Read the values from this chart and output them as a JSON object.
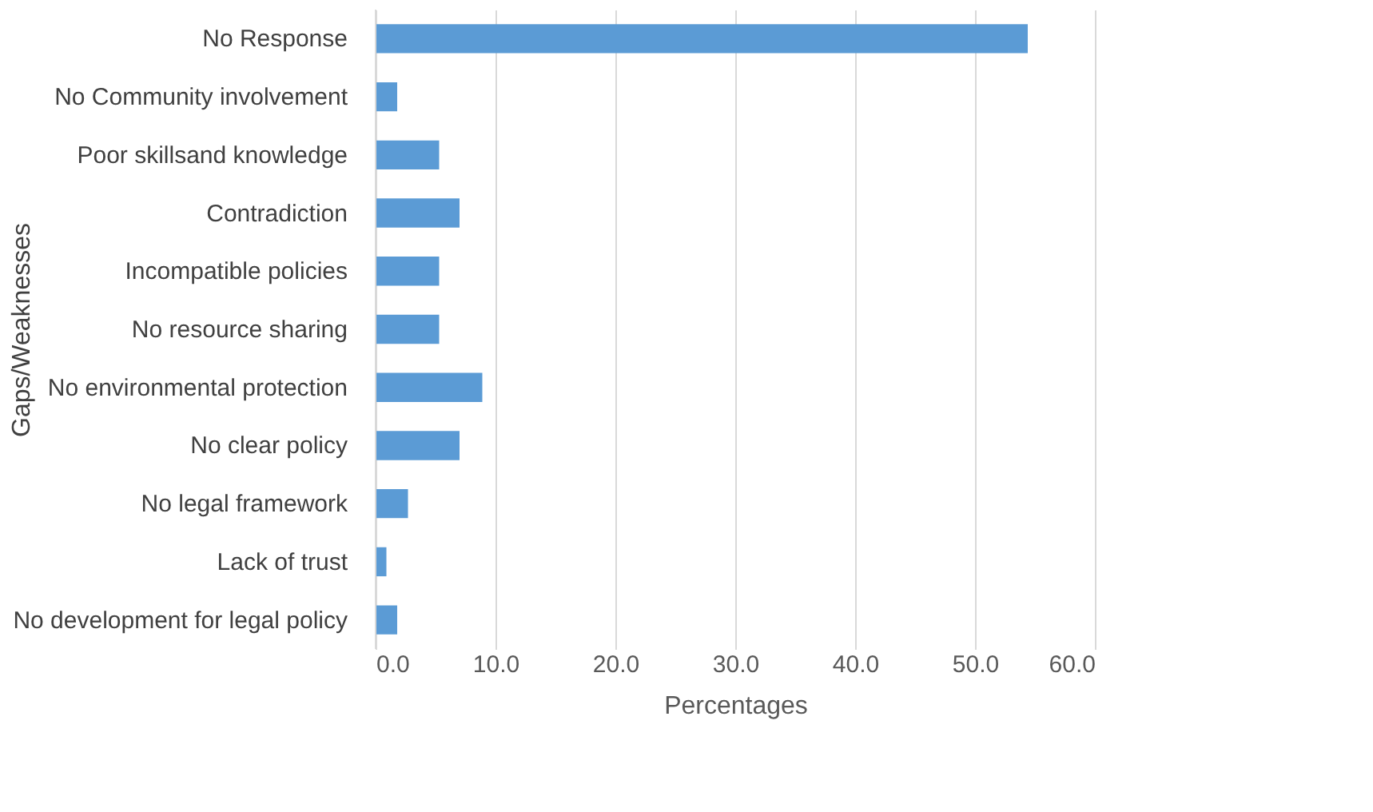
{
  "chart_data": {
    "type": "bar",
    "orientation": "horizontal",
    "xlabel": "Percentages",
    "ylabel": "Gaps/Weaknesses",
    "categories": [
      "No Response",
      "No Community involvement",
      "Poor skillsand knowledge",
      "Contradiction",
      "Incompatible policies",
      "No resource sharing",
      "No environmental protection",
      "No clear policy",
      "No legal framework",
      "Lack of trust",
      "No development for legal policy"
    ],
    "values": [
      54.4,
      1.8,
      5.3,
      7.0,
      5.3,
      5.3,
      8.9,
      7.0,
      2.7,
      0.9,
      1.8
    ],
    "color": "#5b9bd5",
    "xlim": [
      0,
      60
    ],
    "xticks": [
      {
        "value": 0,
        "label": "0.0"
      },
      {
        "value": 10,
        "label": "10.0"
      },
      {
        "value": 20,
        "label": "20.0"
      },
      {
        "value": 30,
        "label": "30.0"
      },
      {
        "value": 40,
        "label": "40.0"
      },
      {
        "value": 50,
        "label": "50.0"
      },
      {
        "value": 60,
        "label": "60.0"
      }
    ],
    "grid": "x"
  }
}
